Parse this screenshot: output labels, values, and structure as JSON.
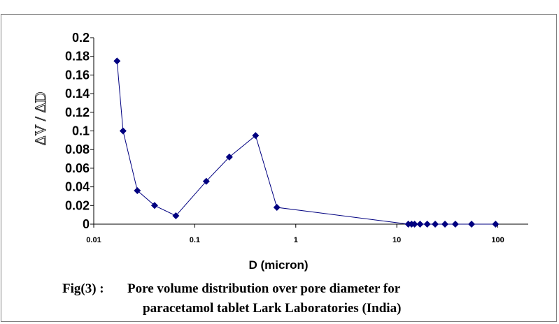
{
  "chart_data": {
    "type": "scatter",
    "xscale": "log",
    "xlim": [
      0.01,
      200
    ],
    "ylim": [
      0,
      0.2
    ],
    "xlabel": "D (micron)",
    "ylabel": "ΔV / ΔD",
    "xticks": [
      "0.01",
      "0.1",
      "1",
      "10",
      "100"
    ],
    "yticks": [
      "0",
      "0.02",
      "0.04",
      "0.06",
      "0.08",
      "0.1",
      "0.12",
      "0.14",
      "0.16",
      "0.18",
      "0.2"
    ],
    "grid": false,
    "legend": "none",
    "marker": "diamond",
    "line": "connected",
    "color": "#000080",
    "series": [
      {
        "x": [
          0.017,
          0.0195,
          0.027,
          0.04,
          0.065,
          0.13,
          0.22,
          0.4,
          0.65,
          13,
          14,
          15,
          17,
          20,
          24,
          30,
          38,
          55,
          95
        ],
        "y": [
          0.175,
          0.1,
          0.036,
          0.02,
          0.009,
          0.046,
          0.072,
          0.095,
          0.018,
          0,
          0,
          0,
          0,
          0,
          0,
          0,
          0,
          0,
          0
        ]
      }
    ]
  },
  "caption": {
    "fig": "Fig(3) :",
    "line1": "Pore volume distribution over pore diameter for",
    "line2": "paracetamol tablet  Lark Laboratories (India)"
  }
}
